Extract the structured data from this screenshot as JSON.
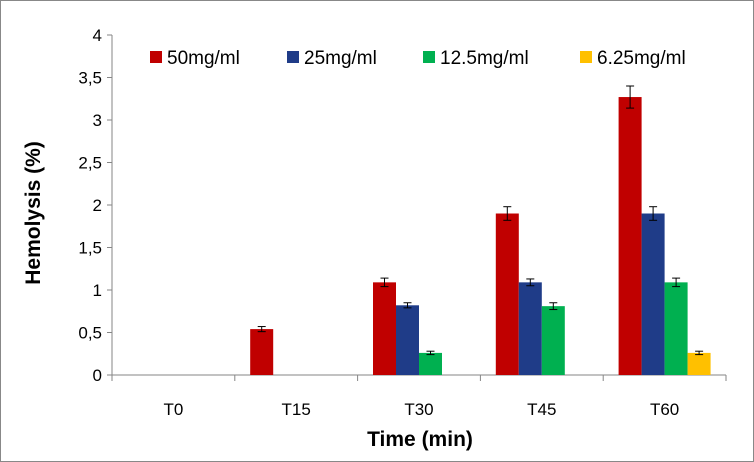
{
  "chart_data": {
    "type": "bar",
    "title": "",
    "xlabel": "Time (min)",
    "ylabel": "Hemolysis (%)",
    "ylim": [
      0,
      4
    ],
    "yticks": [
      "0",
      "0,5",
      "1",
      "1,5",
      "2",
      "2,5",
      "3",
      "3,5",
      "4"
    ],
    "ytick_values": [
      0,
      0.5,
      1,
      1.5,
      2,
      2.5,
      3,
      3.5,
      4
    ],
    "categories": [
      "T0",
      "T15",
      "T30",
      "T45",
      "T60"
    ],
    "grid": false,
    "legend_position": "top",
    "series": [
      {
        "name": "50mg/ml",
        "color": "#C00000",
        "values": [
          0,
          0.54,
          1.09,
          1.9,
          3.27
        ],
        "errors": [
          0,
          0.03,
          0.05,
          0.08,
          0.13
        ]
      },
      {
        "name": "25mg/ml",
        "color": "#1F3C88",
        "values": [
          0,
          0,
          0.82,
          1.09,
          1.9
        ],
        "errors": [
          0,
          0,
          0.03,
          0.04,
          0.08
        ]
      },
      {
        "name": "12.5mg/ml",
        "color": "#00B050",
        "values": [
          0,
          0,
          0.26,
          0.81,
          1.09
        ],
        "errors": [
          0,
          0,
          0.02,
          0.04,
          0.05
        ]
      },
      {
        "name": "6.25mg/ml",
        "color": "#FFC000",
        "values": [
          0,
          0,
          0,
          0,
          0.26
        ],
        "errors": [
          0,
          0,
          0,
          0,
          0.02
        ]
      }
    ]
  }
}
